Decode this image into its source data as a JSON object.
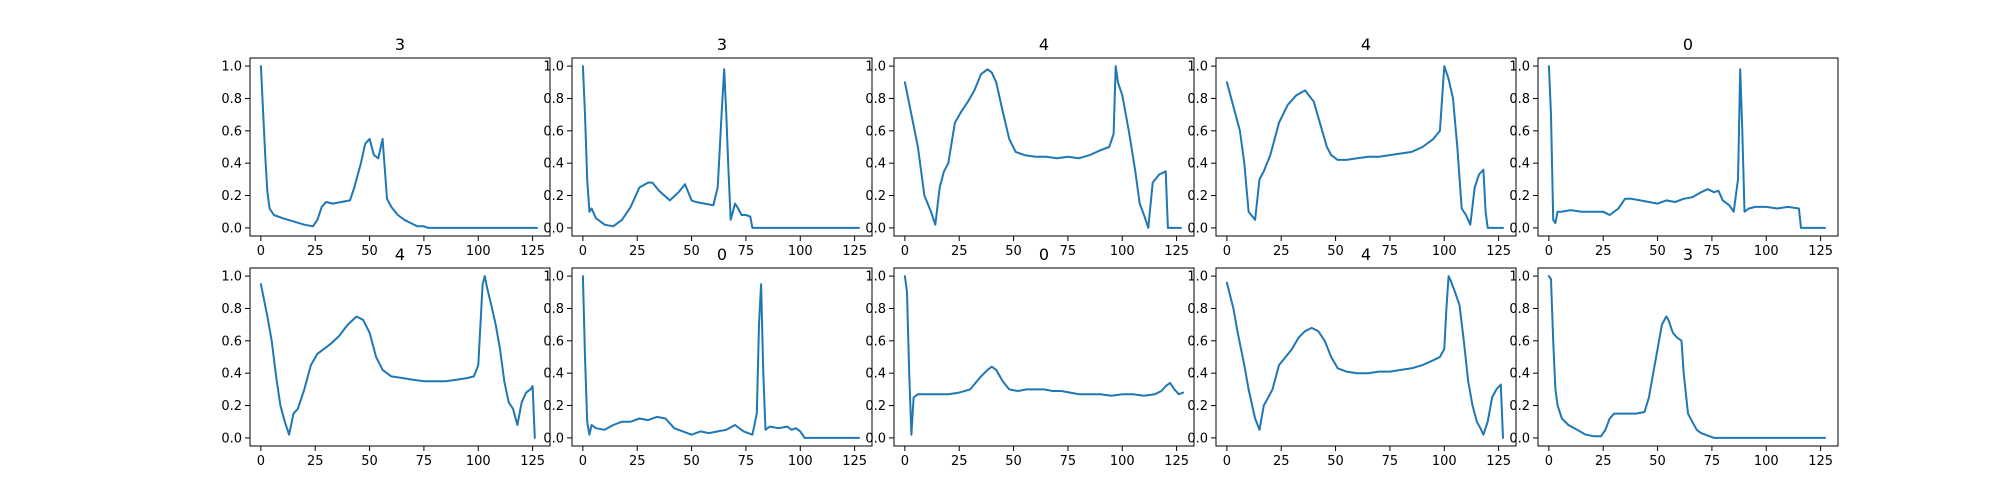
{
  "chart_data": [
    {
      "type": "line",
      "title": "3",
      "xlim": [
        -5,
        133
      ],
      "ylim": [
        -0.05,
        1.05
      ],
      "xticks": [
        0,
        25,
        50,
        75,
        100,
        125
      ],
      "yticks": [
        0.0,
        0.2,
        0.4,
        0.6,
        0.8,
        1.0
      ],
      "series": [
        {
          "color": "#1f77b4",
          "x": [
            0,
            2,
            3,
            4,
            6,
            10,
            15,
            20,
            24,
            26,
            28,
            30,
            33,
            37,
            41,
            43,
            46,
            48,
            50,
            52,
            54,
            56,
            58,
            60,
            63,
            66,
            69,
            72,
            75,
            77,
            78,
            90,
            100,
            110,
            120,
            127
          ],
          "y": [
            1.0,
            0.45,
            0.22,
            0.12,
            0.08,
            0.06,
            0.04,
            0.02,
            0.01,
            0.05,
            0.13,
            0.16,
            0.15,
            0.16,
            0.17,
            0.25,
            0.4,
            0.52,
            0.55,
            0.45,
            0.43,
            0.55,
            0.18,
            0.13,
            0.08,
            0.05,
            0.03,
            0.01,
            0.01,
            0.0,
            0.0,
            0.0,
            0.0,
            0.0,
            0.0,
            0.0
          ]
        }
      ]
    },
    {
      "type": "line",
      "title": "3",
      "xlim": [
        -5,
        133
      ],
      "ylim": [
        -0.05,
        1.05
      ],
      "xticks": [
        0,
        25,
        50,
        75,
        100,
        125
      ],
      "yticks": [
        0.0,
        0.2,
        0.4,
        0.6,
        0.8,
        1.0
      ],
      "series": [
        {
          "color": "#1f77b4",
          "x": [
            0,
            1,
            2,
            3,
            4,
            6,
            8,
            10,
            14,
            18,
            22,
            26,
            30,
            32,
            35,
            40,
            44,
            47,
            50,
            52,
            56,
            60,
            62,
            64,
            65,
            66,
            67,
            68,
            70,
            71,
            73,
            75,
            77,
            78,
            90,
            100,
            110,
            120,
            127
          ],
          "y": [
            1.0,
            0.7,
            0.3,
            0.1,
            0.12,
            0.06,
            0.04,
            0.02,
            0.01,
            0.05,
            0.13,
            0.25,
            0.28,
            0.28,
            0.23,
            0.17,
            0.22,
            0.27,
            0.17,
            0.16,
            0.15,
            0.14,
            0.25,
            0.75,
            0.98,
            0.7,
            0.35,
            0.05,
            0.15,
            0.13,
            0.08,
            0.08,
            0.07,
            0.0,
            0.0,
            0.0,
            0.0,
            0.0,
            0.0
          ]
        }
      ]
    },
    {
      "type": "line",
      "title": "4",
      "xlim": [
        -5,
        133
      ],
      "ylim": [
        -0.05,
        1.05
      ],
      "xticks": [
        0,
        25,
        50,
        75,
        100,
        125
      ],
      "yticks": [
        0.0,
        0.2,
        0.4,
        0.6,
        0.8,
        1.0
      ],
      "series": [
        {
          "color": "#1f77b4",
          "x": [
            0,
            3,
            6,
            9,
            12,
            14,
            16,
            18,
            20,
            23,
            26,
            29,
            32,
            35,
            38,
            40,
            42,
            45,
            48,
            51,
            55,
            60,
            65,
            70,
            75,
            80,
            85,
            90,
            94,
            96,
            97,
            98,
            100,
            103,
            106,
            108,
            110,
            112,
            114,
            117,
            120,
            121,
            123,
            127
          ],
          "y": [
            0.9,
            0.7,
            0.5,
            0.2,
            0.1,
            0.02,
            0.25,
            0.35,
            0.4,
            0.65,
            0.72,
            0.78,
            0.85,
            0.95,
            0.98,
            0.96,
            0.9,
            0.72,
            0.55,
            0.47,
            0.45,
            0.44,
            0.44,
            0.43,
            0.44,
            0.43,
            0.45,
            0.48,
            0.5,
            0.58,
            1.0,
            0.9,
            0.82,
            0.6,
            0.35,
            0.15,
            0.08,
            0.0,
            0.28,
            0.33,
            0.35,
            0.0,
            0.0,
            0.0
          ]
        }
      ]
    },
    {
      "type": "line",
      "title": "4",
      "xlim": [
        -5,
        133
      ],
      "ylim": [
        -0.05,
        1.05
      ],
      "xticks": [
        0,
        25,
        50,
        75,
        100,
        125
      ],
      "yticks": [
        0.0,
        0.2,
        0.4,
        0.6,
        0.8,
        1.0
      ],
      "series": [
        {
          "color": "#1f77b4",
          "x": [
            0,
            3,
            6,
            8,
            10,
            13,
            15,
            17,
            20,
            24,
            28,
            32,
            36,
            40,
            43,
            46,
            48,
            51,
            55,
            60,
            65,
            70,
            75,
            80,
            85,
            90,
            95,
            98,
            100,
            102,
            104,
            106,
            108,
            110,
            112,
            114,
            116,
            118,
            119,
            120,
            121,
            123,
            127
          ],
          "y": [
            0.9,
            0.75,
            0.6,
            0.4,
            0.1,
            0.05,
            0.3,
            0.35,
            0.45,
            0.65,
            0.76,
            0.82,
            0.85,
            0.78,
            0.64,
            0.5,
            0.45,
            0.42,
            0.42,
            0.43,
            0.44,
            0.44,
            0.45,
            0.46,
            0.47,
            0.5,
            0.55,
            0.6,
            1.0,
            0.92,
            0.8,
            0.5,
            0.12,
            0.08,
            0.02,
            0.25,
            0.33,
            0.36,
            0.1,
            0.0,
            0.0,
            0.0,
            0.0
          ]
        }
      ]
    },
    {
      "type": "line",
      "title": "0",
      "xlim": [
        -5,
        133
      ],
      "ylim": [
        -0.05,
        1.05
      ],
      "xticks": [
        0,
        25,
        50,
        75,
        100,
        125
      ],
      "yticks": [
        0.0,
        0.2,
        0.4,
        0.6,
        0.8,
        1.0
      ],
      "series": [
        {
          "color": "#1f77b4",
          "x": [
            0,
            1,
            2,
            3,
            4,
            6,
            10,
            15,
            20,
            25,
            28,
            32,
            35,
            38,
            42,
            46,
            50,
            54,
            58,
            62,
            66,
            70,
            73,
            76,
            78,
            80,
            83,
            85,
            87,
            88,
            89,
            90,
            92,
            95,
            100,
            105,
            110,
            115,
            116,
            120,
            127
          ],
          "y": [
            1.0,
            0.7,
            0.05,
            0.03,
            0.1,
            0.1,
            0.11,
            0.1,
            0.1,
            0.1,
            0.08,
            0.12,
            0.18,
            0.18,
            0.17,
            0.16,
            0.15,
            0.17,
            0.16,
            0.18,
            0.19,
            0.22,
            0.24,
            0.22,
            0.23,
            0.17,
            0.14,
            0.1,
            0.3,
            0.98,
            0.6,
            0.1,
            0.12,
            0.13,
            0.13,
            0.12,
            0.13,
            0.12,
            0.0,
            0.0,
            0.0
          ]
        }
      ]
    },
    {
      "type": "line",
      "title": "4",
      "xlim": [
        -5,
        133
      ],
      "ylim": [
        -0.05,
        1.05
      ],
      "xticks": [
        0,
        25,
        50,
        75,
        100,
        125
      ],
      "yticks": [
        0.0,
        0.2,
        0.4,
        0.6,
        0.8,
        1.0
      ],
      "series": [
        {
          "color": "#1f77b4",
          "x": [
            0,
            3,
            5,
            7,
            9,
            11,
            13,
            15,
            17,
            20,
            23,
            26,
            29,
            32,
            36,
            40,
            44,
            47,
            50,
            53,
            56,
            60,
            65,
            70,
            75,
            80,
            85,
            90,
            95,
            98,
            100,
            102,
            103,
            104,
            106,
            108,
            110,
            112,
            114,
            116,
            118,
            120,
            122,
            124,
            125,
            126
          ],
          "y": [
            0.95,
            0.75,
            0.6,
            0.38,
            0.2,
            0.1,
            0.02,
            0.15,
            0.18,
            0.3,
            0.45,
            0.52,
            0.55,
            0.58,
            0.63,
            0.7,
            0.75,
            0.73,
            0.65,
            0.5,
            0.42,
            0.38,
            0.37,
            0.36,
            0.35,
            0.35,
            0.35,
            0.36,
            0.37,
            0.38,
            0.45,
            0.95,
            1.0,
            0.93,
            0.82,
            0.7,
            0.55,
            0.35,
            0.22,
            0.18,
            0.08,
            0.22,
            0.28,
            0.3,
            0.32,
            0.0
          ]
        }
      ]
    },
    {
      "type": "line",
      "title": "0",
      "xlim": [
        -5,
        133
      ],
      "ylim": [
        -0.05,
        1.05
      ],
      "xticks": [
        0,
        25,
        50,
        75,
        100,
        125
      ],
      "yticks": [
        0.0,
        0.2,
        0.4,
        0.6,
        0.8,
        1.0
      ],
      "series": [
        {
          "color": "#1f77b4",
          "x": [
            0,
            1,
            2,
            3,
            4,
            6,
            10,
            14,
            18,
            22,
            26,
            30,
            34,
            38,
            42,
            46,
            50,
            54,
            58,
            62,
            66,
            70,
            74,
            78,
            80,
            81,
            82,
            83,
            84,
            86,
            90,
            94,
            96,
            98,
            100,
            102,
            104,
            110,
            120,
            127
          ],
          "y": [
            1.0,
            0.5,
            0.1,
            0.02,
            0.08,
            0.06,
            0.05,
            0.08,
            0.1,
            0.1,
            0.12,
            0.11,
            0.13,
            0.12,
            0.06,
            0.04,
            0.02,
            0.04,
            0.03,
            0.04,
            0.05,
            0.08,
            0.04,
            0.02,
            0.15,
            0.7,
            0.95,
            0.4,
            0.05,
            0.07,
            0.06,
            0.07,
            0.05,
            0.06,
            0.04,
            0.0,
            0.0,
            0.0,
            0.0,
            0.0
          ]
        }
      ]
    },
    {
      "type": "line",
      "title": "0",
      "xlim": [
        -5,
        133
      ],
      "ylim": [
        -0.05,
        1.05
      ],
      "xticks": [
        0,
        25,
        50,
        75,
        100,
        125
      ],
      "yticks": [
        0.0,
        0.2,
        0.4,
        0.6,
        0.8,
        1.0
      ],
      "series": [
        {
          "color": "#1f77b4",
          "x": [
            0,
            1,
            2,
            3,
            4,
            6,
            10,
            15,
            20,
            25,
            30,
            35,
            38,
            40,
            42,
            45,
            48,
            52,
            56,
            60,
            64,
            68,
            72,
            76,
            80,
            85,
            90,
            95,
            100,
            105,
            110,
            115,
            118,
            120,
            122,
            124,
            126,
            128
          ],
          "y": [
            1.0,
            0.9,
            0.4,
            0.02,
            0.25,
            0.27,
            0.27,
            0.27,
            0.27,
            0.28,
            0.3,
            0.38,
            0.42,
            0.44,
            0.42,
            0.35,
            0.3,
            0.29,
            0.3,
            0.3,
            0.3,
            0.29,
            0.29,
            0.28,
            0.27,
            0.27,
            0.27,
            0.26,
            0.27,
            0.27,
            0.26,
            0.27,
            0.29,
            0.32,
            0.34,
            0.3,
            0.27,
            0.28
          ]
        }
      ]
    },
    {
      "type": "line",
      "title": "4",
      "xlim": [
        -5,
        133
      ],
      "ylim": [
        -0.05,
        1.05
      ],
      "xticks": [
        0,
        25,
        50,
        75,
        100,
        125
      ],
      "yticks": [
        0.0,
        0.2,
        0.4,
        0.6,
        0.8,
        1.0
      ],
      "series": [
        {
          "color": "#1f77b4",
          "x": [
            0,
            3,
            5,
            8,
            10,
            13,
            15,
            17,
            19,
            21,
            24,
            27,
            30,
            33,
            36,
            39,
            42,
            45,
            48,
            51,
            55,
            60,
            65,
            70,
            75,
            80,
            85,
            90,
            95,
            98,
            100,
            101,
            102,
            103,
            105,
            107,
            109,
            111,
            113,
            115,
            117,
            118,
            120,
            122,
            124,
            126,
            127
          ],
          "y": [
            0.96,
            0.8,
            0.65,
            0.45,
            0.3,
            0.12,
            0.05,
            0.2,
            0.25,
            0.3,
            0.45,
            0.5,
            0.55,
            0.62,
            0.66,
            0.68,
            0.66,
            0.6,
            0.5,
            0.43,
            0.41,
            0.4,
            0.4,
            0.41,
            0.41,
            0.42,
            0.43,
            0.45,
            0.48,
            0.5,
            0.55,
            0.8,
            1.0,
            0.97,
            0.9,
            0.82,
            0.6,
            0.35,
            0.2,
            0.1,
            0.05,
            0.02,
            0.1,
            0.25,
            0.3,
            0.33,
            0.0
          ]
        }
      ]
    },
    {
      "type": "line",
      "title": "3",
      "xlim": [
        -5,
        133
      ],
      "ylim": [
        -0.05,
        1.05
      ],
      "xticks": [
        0,
        25,
        50,
        75,
        100,
        125
      ],
      "yticks": [
        0.0,
        0.2,
        0.4,
        0.6,
        0.8,
        1.0
      ],
      "series": [
        {
          "color": "#1f77b4",
          "x": [
            0,
            1,
            2,
            3,
            4,
            6,
            9,
            13,
            17,
            21,
            24,
            26,
            28,
            30,
            35,
            40,
            44,
            46,
            48,
            50,
            52,
            54,
            55,
            57,
            59,
            61,
            62,
            64,
            66,
            68,
            70,
            72,
            74,
            76,
            80,
            90,
            100,
            110,
            120,
            127
          ],
          "y": [
            1.0,
            0.98,
            0.6,
            0.3,
            0.2,
            0.12,
            0.08,
            0.05,
            0.02,
            0.01,
            0.01,
            0.05,
            0.12,
            0.15,
            0.15,
            0.15,
            0.16,
            0.25,
            0.4,
            0.55,
            0.7,
            0.75,
            0.73,
            0.65,
            0.62,
            0.6,
            0.4,
            0.15,
            0.1,
            0.05,
            0.03,
            0.02,
            0.01,
            0.0,
            0.0,
            0.0,
            0.0,
            0.0,
            0.0,
            0.0
          ]
        }
      ]
    }
  ]
}
